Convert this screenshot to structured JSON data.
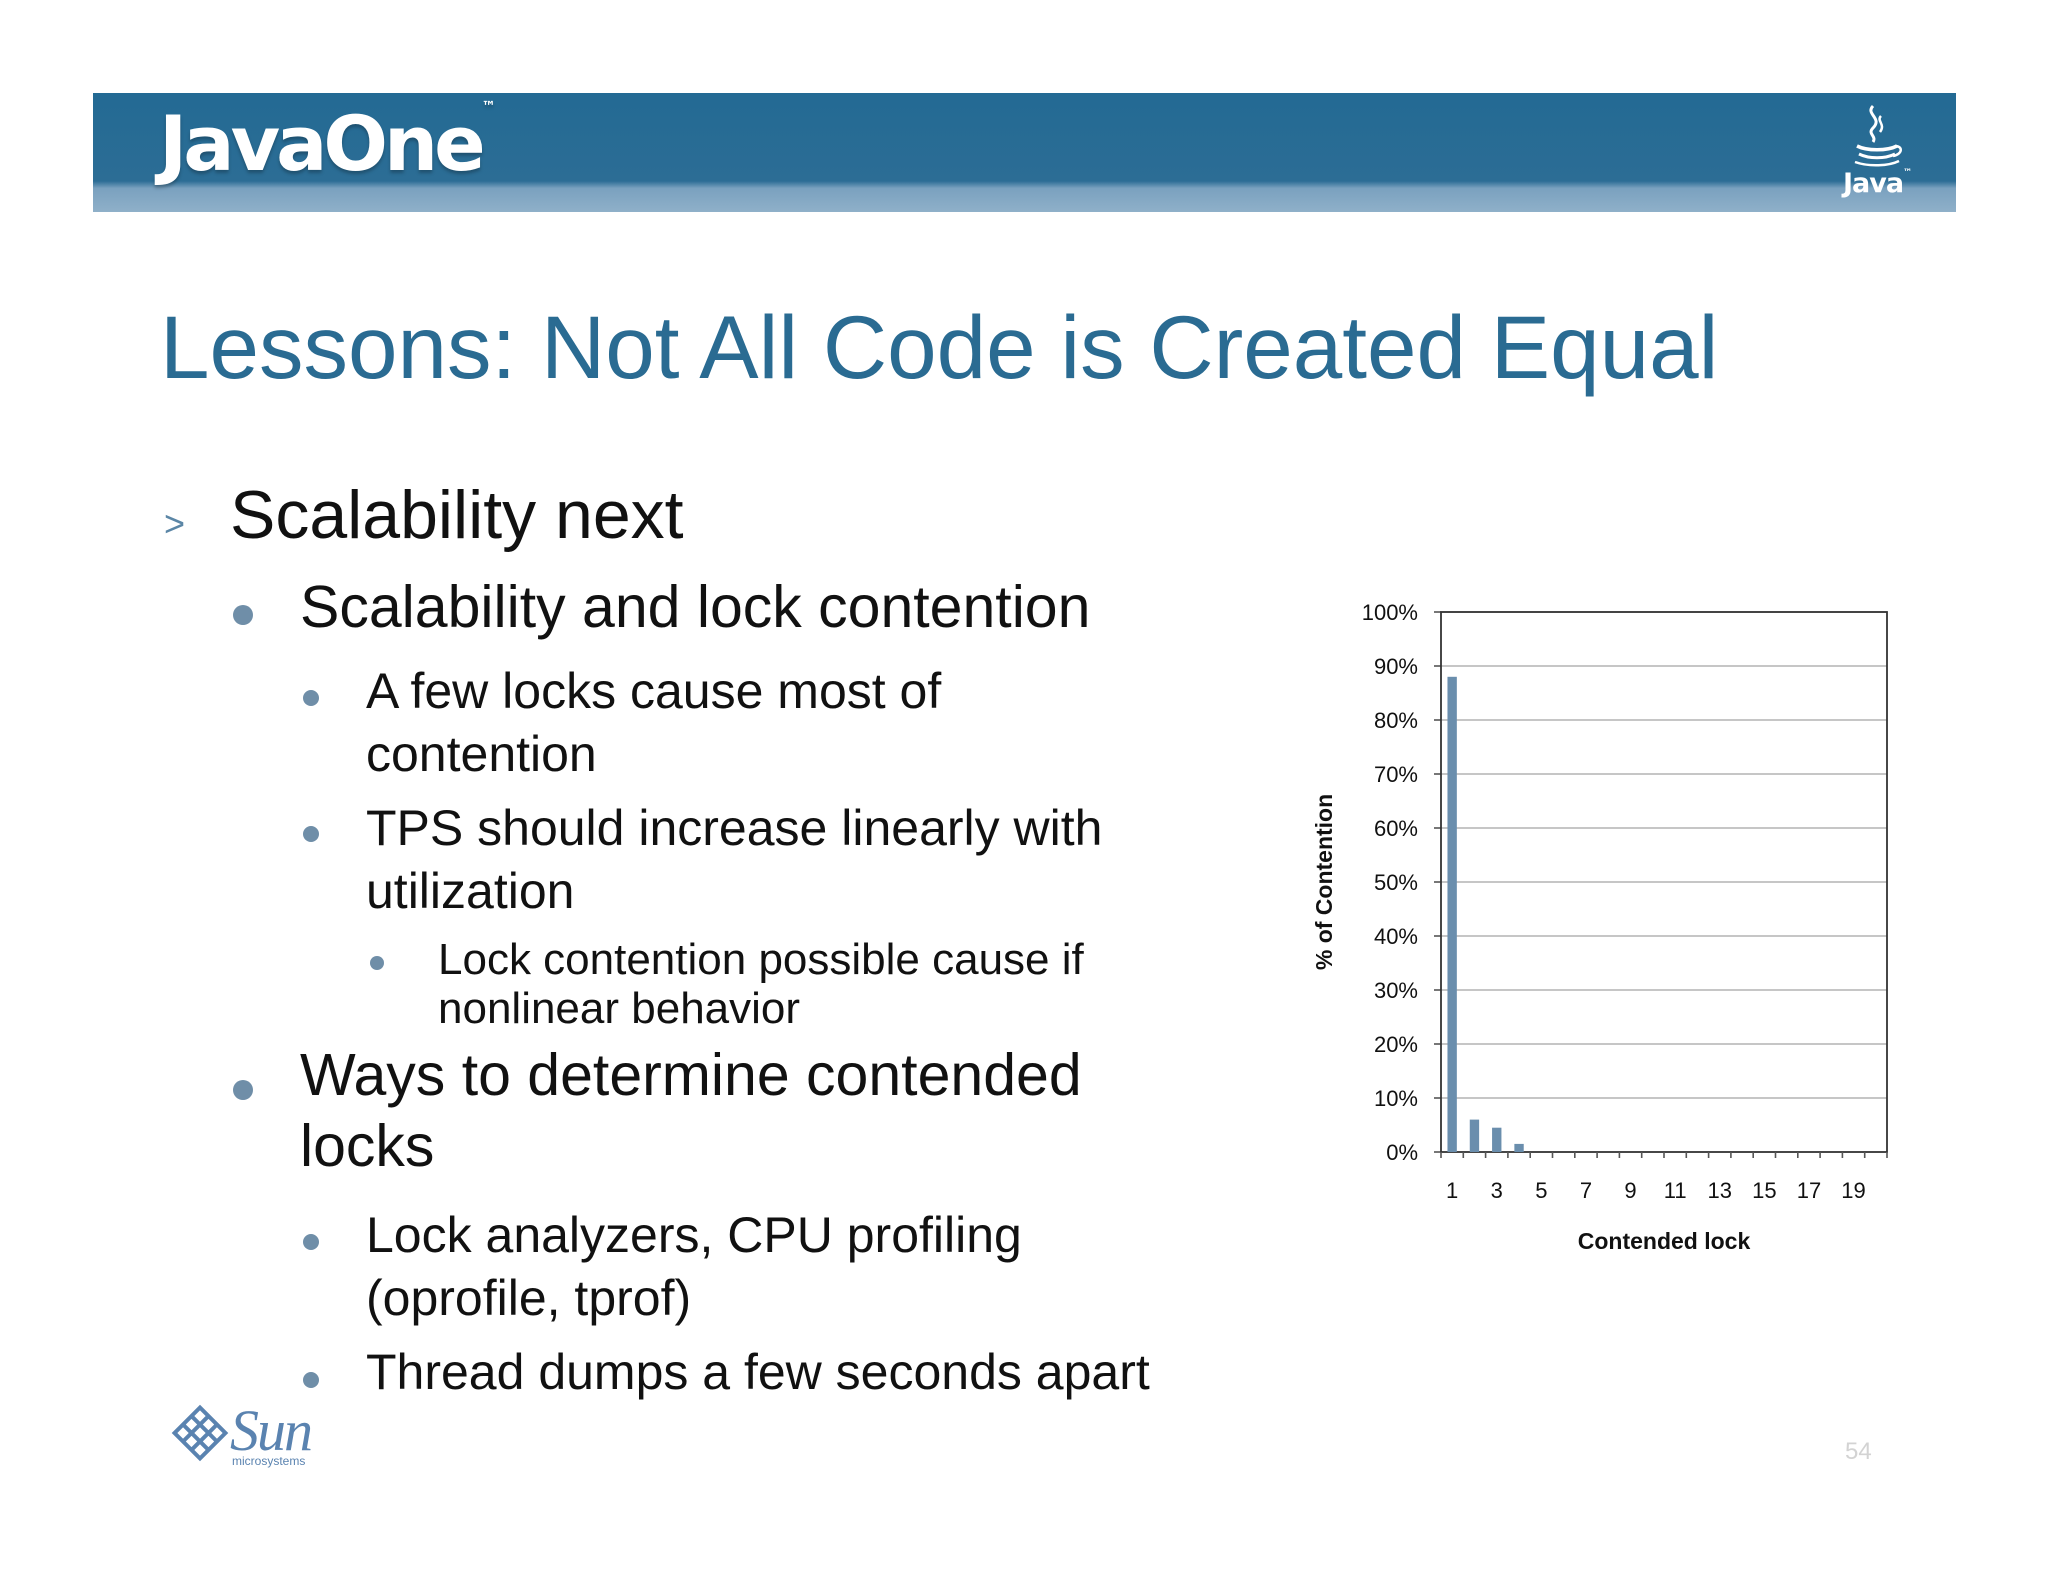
{
  "header": {
    "logo_text": "JavaOne",
    "java_logo_text": "Java"
  },
  "slide": {
    "title": "Lessons: Not All Code is Created Equal",
    "bullets": [
      {
        "level": 1,
        "text": "Scalability next"
      },
      {
        "level": 2,
        "text": "Scalability and lock contention"
      },
      {
        "level": 3,
        "lines": [
          "A few locks cause most of",
          "contention"
        ]
      },
      {
        "level": 3,
        "lines": [
          "TPS should increase linearly with",
          "utilization"
        ]
      },
      {
        "level": 4,
        "lines": [
          "Lock contention possible cause if",
          "nonlinear behavior"
        ]
      },
      {
        "level": 2,
        "lines": [
          "Ways to determine contended",
          "locks"
        ]
      },
      {
        "level": 3,
        "lines": [
          "Lock analyzers, CPU profiling",
          "(oprofile, tprof)"
        ]
      },
      {
        "level": 3,
        "text": "Thread dumps a few seconds apart"
      }
    ],
    "page_number": "54"
  },
  "chart_data": {
    "type": "bar",
    "categories": [
      1,
      2,
      3,
      4,
      5,
      6,
      7,
      8,
      9,
      10,
      11,
      12,
      13,
      14,
      15,
      16,
      17,
      18,
      19,
      20
    ],
    "values": [
      0.88,
      0.06,
      0.045,
      0.015,
      0,
      0,
      0,
      0,
      0,
      0,
      0,
      0,
      0,
      0,
      0,
      0,
      0,
      0,
      0,
      0
    ],
    "x_tick_labels": [
      "1",
      "3",
      "5",
      "7",
      "9",
      "11",
      "13",
      "15",
      "17",
      "19"
    ],
    "y_tick_labels": [
      "0%",
      "10%",
      "20%",
      "30%",
      "40%",
      "50%",
      "60%",
      "70%",
      "80%",
      "90%",
      "100%"
    ],
    "ylim": [
      0,
      1
    ],
    "xlabel": "Contended lock",
    "ylabel": "% of Contention",
    "grid": true,
    "bar_color": "#6a8ead"
  },
  "footer": {
    "brand_text": "Sun",
    "brand_subtext": "microsystems"
  },
  "colors": {
    "banner": "#236a94",
    "title": "#2a6b92",
    "bullet_dot": "#6f8ea8",
    "body_text": "#111111"
  }
}
